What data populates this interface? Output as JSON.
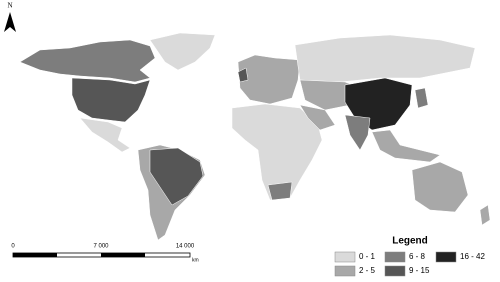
{
  "north_arrow": {
    "label": "N"
  },
  "scale_bar": {
    "labels": [
      "0",
      "7 000",
      "14 000"
    ],
    "unit": "km"
  },
  "legend": {
    "title": "Legend",
    "items": [
      {
        "label": "0 - 1",
        "color": "#dadada"
      },
      {
        "label": "2 - 5",
        "color": "#a8a8a8"
      },
      {
        "label": "6 - 8",
        "color": "#7d7d7d"
      },
      {
        "label": "9 - 15",
        "color": "#565656"
      },
      {
        "label": "16 - 42",
        "color": "#222222"
      }
    ]
  }
}
